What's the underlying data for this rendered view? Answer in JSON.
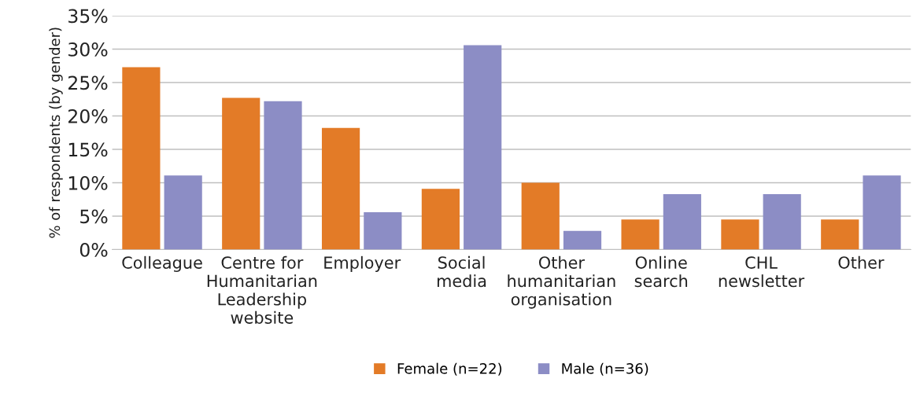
{
  "chart_data": {
    "type": "bar",
    "ylabel": "% of respondents (by gender)",
    "categories": [
      "Colleague",
      "Centre for\nHumanitarian\nLeadership\nwebsite",
      "Employer",
      "Social\nmedia",
      "Other\nhumanitarian\norganisation",
      "Online\nsearch",
      "CHL\nnewsletter",
      "Other"
    ],
    "series": [
      {
        "name": "Female (n=22)",
        "color": "#e37b27",
        "values": [
          27.3,
          22.7,
          18.2,
          9.1,
          10.0,
          4.5,
          4.5,
          4.5
        ]
      },
      {
        "name": "Male (n=36)",
        "color": "#8c8dc5",
        "values": [
          11.1,
          22.2,
          5.6,
          30.6,
          2.8,
          8.3,
          8.3,
          11.1
        ]
      }
    ],
    "ylim": [
      0,
      35
    ],
    "yticks": [
      {
        "value": 0,
        "label": "0%"
      },
      {
        "value": 5,
        "label": "5%"
      },
      {
        "value": 10,
        "label": "10%"
      },
      {
        "value": 15,
        "label": "15%"
      },
      {
        "value": 20,
        "label": "20%"
      },
      {
        "value": 25,
        "label": "25%"
      },
      {
        "value": 30,
        "label": "30%"
      },
      {
        "value": 35,
        "label": "35%"
      }
    ],
    "grid": "y",
    "legend": "bottom"
  }
}
